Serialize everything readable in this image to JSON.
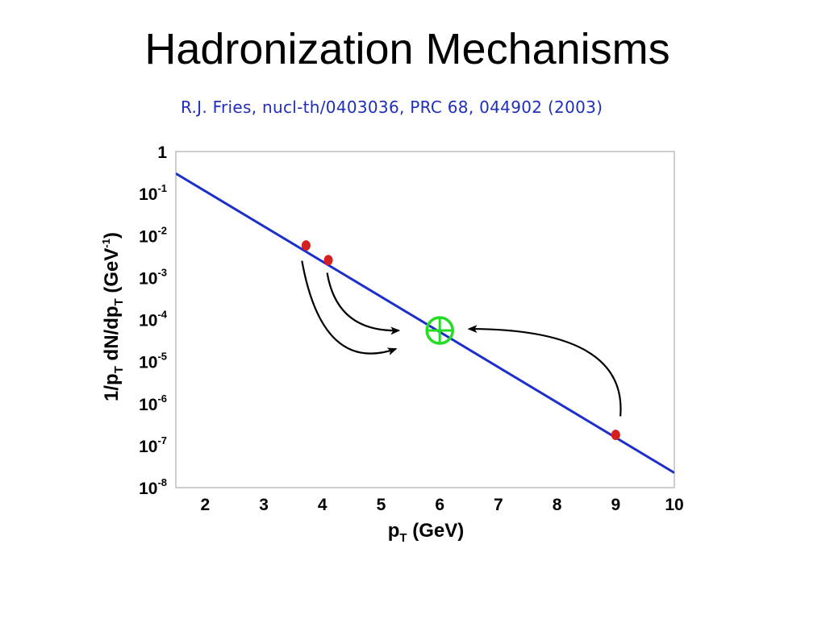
{
  "slide": {
    "title": "Hadronization Mechanisms",
    "citation": "R.J. Fries, nucl-th/0403036, PRC 68, 044902 (2003)"
  },
  "chart_data": {
    "type": "line",
    "x_ticks": [
      2,
      3,
      4,
      5,
      6,
      7,
      8,
      9,
      10
    ],
    "y_tick_labels": [
      {
        "value": 1,
        "base": "1",
        "exp": ""
      },
      {
        "value": 0.1,
        "base": "10",
        "exp": "-1"
      },
      {
        "value": 0.01,
        "base": "10",
        "exp": "-2"
      },
      {
        "value": 0.001,
        "base": "10",
        "exp": "-3"
      },
      {
        "value": 0.0001,
        "base": "10",
        "exp": "-4"
      },
      {
        "value": 1e-05,
        "base": "10",
        "exp": "-5"
      },
      {
        "value": 1e-06,
        "base": "10",
        "exp": "-6"
      },
      {
        "value": 1e-07,
        "base": "10",
        "exp": "-7"
      },
      {
        "value": 1e-08,
        "base": "10",
        "exp": "-8"
      }
    ],
    "xlim": [
      1.5,
      10
    ],
    "ylim": [
      1e-08,
      1
    ],
    "y_scale": "log",
    "xlabel": {
      "main": "p",
      "sub": "T",
      "rest": " (GeV)"
    },
    "ylabel": {
      "p1": "1/p",
      "s1": "T",
      "p2": " dN/dp",
      "s2": "T",
      "p3": " (GeV",
      "sup": "-1",
      "p4": ")"
    },
    "series": [
      {
        "x": [
          1.5,
          10
        ],
        "y": [
          0.3,
          2.25e-08
        ],
        "color": "#1c2fc9"
      }
    ],
    "points": [
      {
        "x": 3.72,
        "y": 0.0058,
        "color": "#d42020"
      },
      {
        "x": 4.1,
        "y": 0.0026,
        "color": "#d42020"
      },
      {
        "x": 9.0,
        "y": 1.8e-07,
        "color": "#d42020"
      }
    ],
    "target": {
      "x": 6.0,
      "y": 5.5e-05,
      "color": "#22dd22"
    },
    "arrows": [
      {
        "from": [
          3.65,
          0.0025
        ],
        "ctrl": [
          4.0,
          5e-06
        ],
        "to": [
          5.25,
          2e-05
        ]
      },
      {
        "from": [
          4.08,
          0.0013
        ],
        "ctrl": [
          4.25,
          5e-05
        ],
        "to": [
          5.3,
          5.5e-05
        ]
      },
      {
        "from": [
          9.08,
          5e-07
        ],
        "ctrl": [
          9.2,
          6e-05
        ],
        "to": [
          6.5,
          6e-05
        ]
      }
    ],
    "colors": {
      "frame": "#bdbdbd",
      "arrow": "#000000"
    }
  }
}
